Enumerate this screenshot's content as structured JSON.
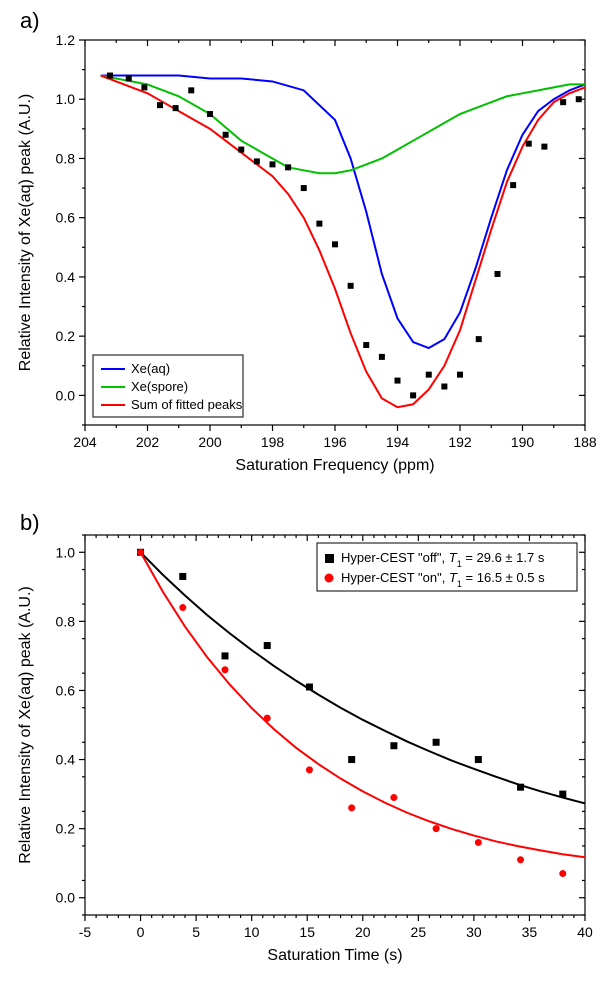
{
  "panelA": {
    "label": "a)",
    "type": "line+scatter",
    "xlabel": "Saturation Frequency (ppm)",
    "ylabel": "Relative Intensity of Xe(aq) peak (A.U.)",
    "xlim": [
      204,
      188
    ],
    "ylim": [
      -0.1,
      1.2
    ],
    "xticks": [
      204,
      202,
      200,
      198,
      196,
      194,
      192,
      190,
      188
    ],
    "yticks": [
      0.0,
      0.2,
      0.4,
      0.6,
      0.8,
      1.0,
      1.2
    ],
    "background_color": "#ffffff",
    "axis_color": "#000000",
    "label_fontsize": 16,
    "tick_fontsize": 14,
    "legend": {
      "position": "bottom-left",
      "items": [
        {
          "label": "Xe(aq)",
          "color": "#0000ff"
        },
        {
          "label": "Xe(spore)",
          "color": "#00c000"
        },
        {
          "label": "Sum of fitted peaks",
          "color": "#ff0000"
        }
      ]
    },
    "scatter": {
      "marker": "square",
      "marker_size": 6,
      "color": "#000000",
      "x": [
        203.2,
        202.6,
        202.1,
        201.6,
        201.1,
        200.6,
        200.0,
        199.5,
        199.0,
        198.5,
        198.0,
        197.5,
        197.0,
        196.5,
        196.0,
        195.5,
        195.0,
        194.5,
        194.0,
        193.5,
        193.0,
        192.5,
        192.0,
        191.4,
        190.8,
        190.3,
        189.8,
        189.3,
        188.7,
        188.2
      ],
      "y": [
        1.08,
        1.07,
        1.04,
        0.98,
        0.97,
        1.03,
        0.95,
        0.88,
        0.83,
        0.79,
        0.78,
        0.77,
        0.7,
        0.58,
        0.51,
        0.37,
        0.17,
        0.13,
        0.05,
        0.0,
        0.07,
        0.03,
        0.07,
        0.19,
        0.41,
        0.71,
        0.85,
        0.84,
        0.99,
        1.0
      ]
    },
    "curves": [
      {
        "name": "Xe(aq)",
        "color": "#0000ff",
        "line_width": 2,
        "x": [
          203.5,
          203,
          202,
          201,
          200,
          199,
          198,
          197,
          196,
          195.5,
          195,
          194.5,
          194,
          193.5,
          193,
          192.5,
          192,
          191.5,
          191,
          190.5,
          190,
          189.5,
          189,
          188.5,
          188
        ],
        "y": [
          1.08,
          1.08,
          1.08,
          1.08,
          1.07,
          1.07,
          1.06,
          1.03,
          0.93,
          0.8,
          0.62,
          0.41,
          0.26,
          0.18,
          0.16,
          0.19,
          0.28,
          0.43,
          0.6,
          0.76,
          0.88,
          0.96,
          1.0,
          1.03,
          1.05
        ]
      },
      {
        "name": "Xe(spore)",
        "color": "#00c000",
        "line_width": 2,
        "x": [
          203.5,
          203,
          202,
          201,
          200,
          199,
          198.5,
          198,
          197.5,
          197,
          196.5,
          196,
          195.5,
          195,
          194.5,
          194,
          193.5,
          193,
          192.5,
          192,
          191.5,
          191,
          190.5,
          190,
          189.5,
          189,
          188.5,
          188
        ],
        "y": [
          1.08,
          1.07,
          1.05,
          1.01,
          0.95,
          0.86,
          0.83,
          0.8,
          0.77,
          0.76,
          0.75,
          0.75,
          0.76,
          0.78,
          0.8,
          0.83,
          0.86,
          0.89,
          0.92,
          0.95,
          0.97,
          0.99,
          1.01,
          1.02,
          1.03,
          1.04,
          1.05,
          1.05
        ]
      },
      {
        "name": "Sum of fitted peaks",
        "color": "#ff0000",
        "line_width": 2,
        "x": [
          203.5,
          203,
          202.5,
          202,
          201.5,
          201,
          200.5,
          200,
          199.5,
          199,
          198.5,
          198,
          197.5,
          197,
          196.5,
          196,
          195.5,
          195,
          194.5,
          194,
          193.5,
          193,
          192.5,
          192,
          191.5,
          191,
          190.5,
          190,
          189.5,
          189,
          188.5,
          188
        ],
        "y": [
          1.08,
          1.06,
          1.04,
          1.02,
          0.99,
          0.96,
          0.93,
          0.9,
          0.86,
          0.82,
          0.78,
          0.74,
          0.68,
          0.6,
          0.49,
          0.36,
          0.21,
          0.08,
          -0.01,
          -0.04,
          -0.03,
          0.02,
          0.1,
          0.22,
          0.39,
          0.56,
          0.72,
          0.84,
          0.93,
          0.99,
          1.02,
          1.04
        ]
      }
    ]
  },
  "panelB": {
    "label": "b)",
    "type": "decay+scatter",
    "xlabel": "Saturation Time (s)",
    "ylabel": "Relative Intensity of Xe(aq) peak (A.U.)",
    "xlim": [
      -5,
      40
    ],
    "ylim": [
      -0.05,
      1.05
    ],
    "xticks": [
      -5,
      0,
      5,
      10,
      15,
      20,
      25,
      30,
      35,
      40
    ],
    "yticks": [
      0.0,
      0.2,
      0.4,
      0.6,
      0.8,
      1.0
    ],
    "background_color": "#ffffff",
    "axis_color": "#000000",
    "label_fontsize": 16,
    "tick_fontsize": 14,
    "legend": {
      "position": "top-right",
      "items": [
        {
          "label_prefix": "Hyper-CEST \"off\", ",
          "t1_label": "T",
          "t1_sub": "1",
          "t1_value": " = 29.6 ± 1.7 s",
          "color": "#000000",
          "marker": "square"
        },
        {
          "label_prefix": "Hyper-CEST \"on\", ",
          "t1_label": "T",
          "t1_sub": "1",
          "t1_value": " = 16.5 ± 0.5 s",
          "color": "#ff0000",
          "marker": "circle"
        }
      ]
    },
    "series": [
      {
        "name": "off",
        "color": "#000000",
        "marker": "square",
        "marker_size": 7,
        "line_width": 2,
        "x": [
          0,
          3.8,
          7.6,
          11.4,
          15.2,
          19.0,
          22.8,
          26.6,
          30.4,
          34.2,
          38.0
        ],
        "y": [
          1.0,
          0.93,
          0.7,
          0.73,
          0.61,
          0.4,
          0.44,
          0.45,
          0.4,
          0.32,
          0.3
        ],
        "fit_x": [
          0,
          2,
          4,
          6,
          8,
          10,
          12,
          14,
          16,
          18,
          20,
          22,
          24,
          26,
          28,
          30,
          32,
          34,
          36,
          38,
          40
        ],
        "fit_y": [
          1.0,
          0.935,
          0.875,
          0.818,
          0.766,
          0.717,
          0.671,
          0.628,
          0.588,
          0.55,
          0.515,
          0.483,
          0.452,
          0.424,
          0.397,
          0.373,
          0.35,
          0.328,
          0.308,
          0.29,
          0.273
        ]
      },
      {
        "name": "on",
        "color": "#ff0000",
        "marker": "circle",
        "marker_size": 7,
        "line_width": 2,
        "x": [
          0,
          3.8,
          7.6,
          11.4,
          15.2,
          19.0,
          22.8,
          26.6,
          30.4,
          34.2,
          38.0
        ],
        "y": [
          1.0,
          0.84,
          0.66,
          0.52,
          0.37,
          0.26,
          0.29,
          0.2,
          0.16,
          0.11,
          0.07
        ],
        "fit_x": [
          0,
          2,
          4,
          6,
          8,
          10,
          12,
          14,
          16,
          18,
          20,
          22,
          24,
          26,
          28,
          30,
          32,
          34,
          36,
          38,
          40
        ],
        "fit_y": [
          1.0,
          0.886,
          0.785,
          0.696,
          0.618,
          0.549,
          0.488,
          0.434,
          0.387,
          0.345,
          0.308,
          0.275,
          0.246,
          0.221,
          0.199,
          0.18,
          0.163,
          0.149,
          0.137,
          0.126,
          0.117
        ]
      }
    ]
  }
}
